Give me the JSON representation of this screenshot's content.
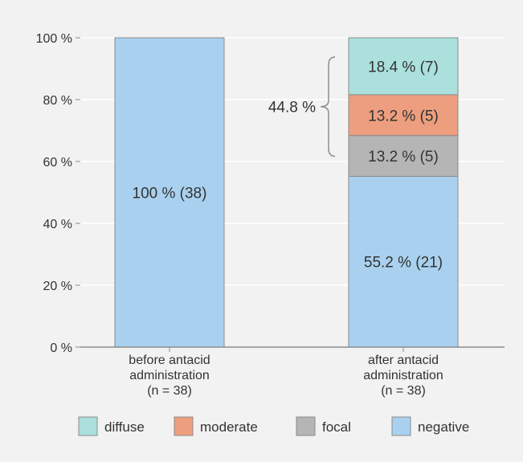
{
  "chart_data": {
    "type": "bar",
    "stacked": true,
    "orientation": "vertical",
    "title": "",
    "xlabel": "",
    "ylabel": "",
    "ylim": [
      0,
      100
    ],
    "yticks": [
      0,
      20,
      40,
      60,
      80,
      100
    ],
    "ytick_labels": [
      "0 %",
      "20 %",
      "40 %",
      "60 %",
      "80 %",
      "100 %"
    ],
    "grid": true,
    "categories": [
      [
        "before antacid",
        "administration",
        "(n = 38)"
      ],
      [
        "after antacid",
        "administration",
        "(n = 38)"
      ]
    ],
    "series": [
      {
        "name": "negative",
        "color": "#a9d1ef",
        "values": [
          100,
          55.2
        ],
        "labels": [
          "100 % (38)",
          "55.2 % (21)"
        ]
      },
      {
        "name": "focal",
        "color": "#b5b5b5",
        "values": [
          0,
          13.2
        ],
        "labels": [
          "",
          "13.2 % (5)"
        ]
      },
      {
        "name": "moderate",
        "color": "#ed9e7e",
        "values": [
          0,
          13.2
        ],
        "labels": [
          "",
          "13.2 % (5)"
        ]
      },
      {
        "name": "diffuse",
        "color": "#abe0dc",
        "values": [
          0,
          18.4
        ],
        "labels": [
          "",
          "18.4 % (7)"
        ]
      }
    ],
    "legend_order": [
      "diffuse",
      "moderate",
      "focal",
      "negative"
    ],
    "legend_position": "bottom",
    "annotation": {
      "text": "44.8 %",
      "category_index": 1,
      "from": 55.2,
      "to": 100
    }
  }
}
